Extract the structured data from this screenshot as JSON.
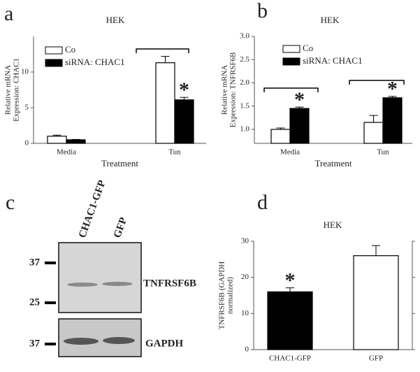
{
  "chart_data": [
    {
      "type": "bar",
      "panel_label": "a",
      "title": "HEK",
      "ylabel_lines": [
        "Relative mRNA",
        "Expression: CHAC1"
      ],
      "xlabel": "Treatment",
      "categories": [
        "Media",
        "Tun"
      ],
      "series": [
        {
          "name": "Co",
          "color": "#ffffff",
          "values": [
            1.0,
            11.3
          ],
          "errors": [
            0.15,
            0.9
          ]
        },
        {
          "name": "siRNA: CHAC1",
          "color": "#000000",
          "values": [
            0.5,
            6.1
          ],
          "errors": [
            0.05,
            0.35
          ]
        }
      ],
      "ylim": [
        0,
        15
      ],
      "yticks": [
        0,
        5,
        10
      ],
      "annotations": [
        "*"
      ]
    },
    {
      "type": "bar",
      "panel_label": "b",
      "title": "HEK",
      "ylabel_lines": [
        "Relative mRNA",
        "Expression: TNFRSF6B"
      ],
      "xlabel": "Treatment",
      "categories": [
        "Media",
        "Tun"
      ],
      "series": [
        {
          "name": "Co",
          "color": "#ffffff",
          "values": [
            1.0,
            1.15
          ],
          "errors": [
            0.03,
            0.15
          ]
        },
        {
          "name": "siRNA: CHAC1",
          "color": "#000000",
          "values": [
            1.45,
            1.68
          ],
          "errors": [
            0.03,
            0.03
          ]
        }
      ],
      "ylim": [
        0.7,
        3.0
      ],
      "yticks": [
        {
          "value": 1,
          "label": "1.0"
        },
        {
          "value": 1.5,
          "label": "1.5"
        },
        {
          "value": 2,
          "label": "2.0"
        },
        {
          "value": 2.5,
          "label": "2.5"
        },
        {
          "value": 3,
          "label": "3.0"
        }
      ],
      "annotations": [
        "*",
        "*"
      ]
    },
    {
      "type": "bar",
      "panel_label": "d",
      "title": "HEK",
      "ylabel_lines": [
        "TNFRSF6B (GAPDH",
        "normalized)"
      ],
      "categories": [
        "CHAC1-GFP",
        "GFP"
      ],
      "series": [
        {
          "colors": [
            "#000000",
            "#ffffff"
          ],
          "values": [
            16,
            26
          ],
          "errors": [
            1.1,
            2.8
          ]
        }
      ],
      "ylim": [
        0,
        30
      ],
      "yticks": [
        0,
        10,
        20,
        30
      ],
      "annotations": [
        "*"
      ]
    }
  ],
  "blot": {
    "panel_label": "c",
    "lanes": [
      "CHAC1-GFP",
      "GFP"
    ],
    "markers": [
      37,
      25,
      37
    ],
    "bands": [
      "TNFRSF6B",
      "GAPDH"
    ]
  }
}
